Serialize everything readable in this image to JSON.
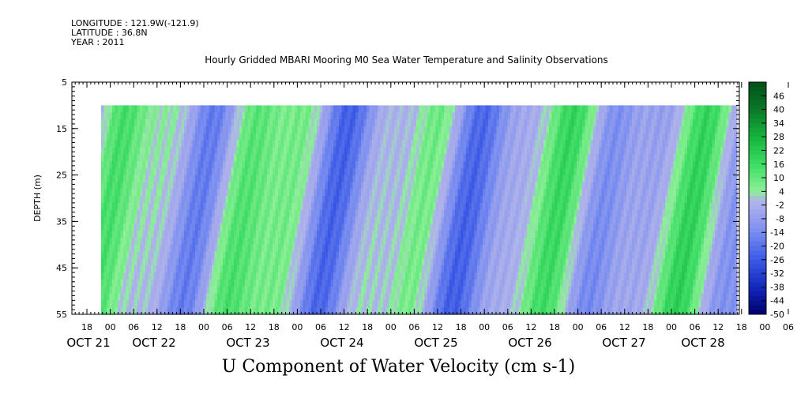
{
  "header": {
    "longitude": "LONGITUDE : 121.9W(-121.9)",
    "latitude": "LATITUDE : 36.8N",
    "year": "YEAR : 2011"
  },
  "chart_data": {
    "type": "heatmap",
    "title": "Hourly Gridded MBARI Mooring M0 Sea Water Temperature and Salinity Observations",
    "xlabel": "U Component of Water Velocity (cm s-1)",
    "ylabel": "DEPTH (m)",
    "y_ticks": [
      5,
      15,
      25,
      35,
      45,
      55
    ],
    "ylim": [
      55,
      5
    ],
    "x_hour_ticks": [
      "18",
      "00",
      "06",
      "12",
      "18",
      "00",
      "06",
      "12",
      "18",
      "00",
      "06",
      "12",
      "18",
      "00",
      "06",
      "12",
      "18",
      "00",
      "06",
      "12",
      "18",
      "00",
      "06",
      "12",
      "18",
      "00",
      "06",
      "12",
      "18",
      "00",
      "06",
      "12"
    ],
    "x_date_labels": [
      "OCT 21",
      "OCT 22",
      "OCT 23",
      "OCT 24",
      "OCT 25",
      "OCT 26",
      "OCT 27",
      "OCT 28"
    ],
    "colorbar": {
      "labels": [
        "46",
        "40",
        "34",
        "28",
        "22",
        "16",
        "10",
        "4",
        "-2",
        "-8",
        "-14",
        "-20",
        "-26",
        "-32",
        "-38",
        "-44",
        "-50"
      ],
      "range": [
        -50,
        52
      ]
    },
    "data_depth_range": [
      10,
      55
    ]
  }
}
